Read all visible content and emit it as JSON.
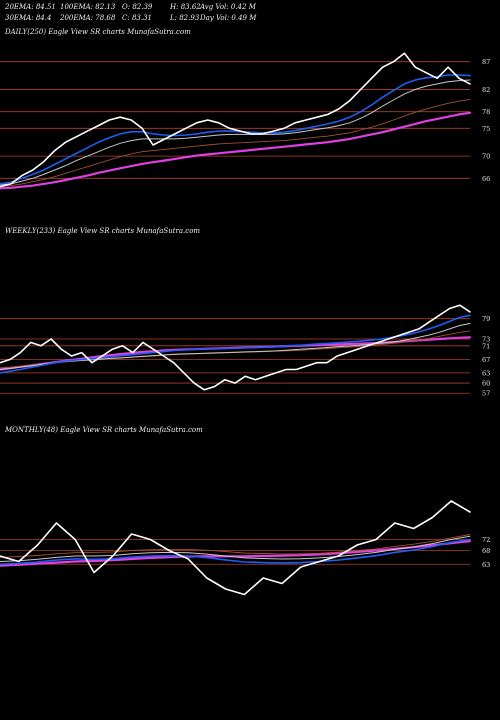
{
  "header": {
    "row1": [
      "20EMA: 84.51",
      "100EMA: 82.13",
      "O: 82.39",
      "H: 83.62",
      "Avg Vol: 0.42  M"
    ],
    "row2": [
      "30EMA: 84.4",
      "200EMA: 78.68",
      "C: 83.31",
      "L: 82.93",
      "Day Vol: 0.49 M"
    ]
  },
  "colors": {
    "background": "#000000",
    "price": "#ffffff",
    "ema_fast": "#1e5ef5",
    "ema_mid": "#c8c8c8",
    "ema_slow": "#a0522d",
    "ema_long": "#e040e0",
    "gridline": "#b0402a"
  },
  "chart_data": [
    {
      "type": "line",
      "title": "DAILY(250) Eagle  View  SR charts MunafaSutra.com",
      "yticks": [
        87,
        82,
        78,
        75,
        70,
        66
      ],
      "ylim": [
        63,
        90
      ],
      "grid": true,
      "series": [
        {
          "role": "price",
          "values": [
            64.5,
            65,
            66.5,
            67.5,
            69,
            71,
            72.5,
            73.5,
            74.5,
            75.5,
            76.5,
            77,
            76.5,
            75,
            72,
            73,
            74,
            75,
            76,
            76.5,
            76,
            75,
            74.5,
            74,
            74,
            74.5,
            75,
            76,
            76.5,
            77,
            77.5,
            78.5,
            80,
            82,
            84,
            86,
            87,
            88.5,
            86,
            85,
            84,
            86,
            84,
            83
          ]
        },
        {
          "role": "ema_fast",
          "values": [
            65,
            65.3,
            66,
            66.7,
            67.5,
            68.5,
            69.5,
            70.5,
            71.5,
            72.5,
            73.3,
            74,
            74.4,
            74.4,
            74,
            73.8,
            73.7,
            73.8,
            74,
            74.3,
            74.5,
            74.5,
            74.4,
            74.3,
            74.2,
            74.2,
            74.3,
            74.6,
            75,
            75.4,
            75.8,
            76.3,
            77,
            78,
            79.2,
            80.6,
            81.8,
            83,
            83.7,
            84.1,
            84.3,
            84.6,
            84.6,
            84.5
          ]
        },
        {
          "role": "ema_mid",
          "values": [
            64.8,
            65,
            65.5,
            66,
            66.7,
            67.5,
            68.3,
            69.2,
            70,
            70.8,
            71.6,
            72.3,
            72.8,
            73.1,
            73.1,
            73.1,
            73.1,
            73.2,
            73.4,
            73.6,
            73.8,
            73.9,
            73.9,
            73.9,
            73.9,
            73.9,
            74,
            74.2,
            74.5,
            74.8,
            75.1,
            75.5,
            76,
            76.8,
            77.8,
            79,
            80.1,
            81.2,
            82,
            82.6,
            83,
            83.4,
            83.6,
            83.7
          ]
        },
        {
          "role": "ema_slow",
          "values": [
            64.5,
            64.7,
            65,
            65.4,
            65.8,
            66.3,
            66.9,
            67.5,
            68.1,
            68.7,
            69.3,
            69.9,
            70.4,
            70.8,
            71,
            71.2,
            71.4,
            71.6,
            71.8,
            72,
            72.2,
            72.3,
            72.4,
            72.5,
            72.6,
            72.7,
            72.8,
            73,
            73.2,
            73.4,
            73.6,
            73.9,
            74.2,
            74.7,
            75.2,
            75.8,
            76.5,
            77.2,
            77.9,
            78.5,
            79,
            79.5,
            79.9,
            80.2
          ]
        },
        {
          "role": "ema_long",
          "values": [
            64.2,
            64.3,
            64.5,
            64.7,
            65,
            65.3,
            65.7,
            66.1,
            66.5,
            67,
            67.4,
            67.8,
            68.2,
            68.6,
            68.9,
            69.2,
            69.5,
            69.8,
            70.1,
            70.3,
            70.5,
            70.7,
            70.9,
            71.1,
            71.3,
            71.5,
            71.7,
            71.9,
            72.1,
            72.3,
            72.5,
            72.8,
            73.1,
            73.5,
            73.9,
            74.3,
            74.8,
            75.3,
            75.8,
            76.3,
            76.7,
            77.1,
            77.5,
            77.8
          ]
        }
      ]
    },
    {
      "type": "line",
      "title": "WEEKLY(233) Eagle  View  SR charts MunafaSutra.com",
      "yticks": [
        79,
        73,
        71,
        67,
        63,
        60,
        57
      ],
      "ylim": [
        55,
        86
      ],
      "grid": true,
      "series": [
        {
          "role": "price",
          "values": [
            66,
            67,
            69,
            72,
            71,
            73,
            70,
            68,
            69,
            66,
            68,
            70,
            71,
            69,
            72,
            70,
            68,
            66,
            63,
            60,
            58,
            59,
            61,
            60,
            62,
            61,
            62,
            63,
            64,
            64,
            65,
            66,
            66,
            68,
            69,
            70,
            71,
            72,
            73,
            74,
            75,
            76,
            78,
            80,
            82,
            83,
            81
          ]
        },
        {
          "role": "ema_fast",
          "values": [
            63,
            63.5,
            64,
            64.6,
            65.2,
            65.8,
            66.3,
            66.7,
            67,
            67.2,
            67.5,
            67.8,
            68.1,
            68.4,
            68.7,
            69,
            69.3,
            69.6,
            69.8,
            70,
            70.1,
            70.2,
            70.2,
            70.3,
            70.4,
            70.5,
            70.6,
            70.7,
            70.9,
            71.1,
            71.3,
            71.5,
            71.7,
            71.9,
            72.1,
            72.3,
            72.6,
            72.9,
            73.3,
            73.8,
            74.4,
            75.1,
            76,
            77,
            78.2,
            79.4,
            80
          ]
        },
        {
          "role": "ema_mid",
          "values": [
            64,
            64.3,
            64.7,
            65.1,
            65.5,
            65.9,
            66.2,
            66.5,
            66.7,
            66.9,
            67.1,
            67.3,
            67.5,
            67.7,
            67.9,
            68.1,
            68.3,
            68.5,
            68.6,
            68.7,
            68.8,
            68.9,
            69,
            69.1,
            69.2,
            69.3,
            69.4,
            69.5,
            69.7,
            69.9,
            70.1,
            70.3,
            70.5,
            70.7,
            70.9,
            71.1,
            71.4,
            71.7,
            72,
            72.4,
            72.9,
            73.5,
            74.2,
            75,
            76,
            77,
            77.6
          ]
        },
        {
          "role": "ema_slow",
          "values": [
            64.5,
            64.7,
            65,
            65.3,
            65.6,
            65.9,
            66.2,
            66.4,
            66.6,
            66.8,
            67,
            67.2,
            67.4,
            67.6,
            67.8,
            68,
            68.2,
            68.4,
            68.5,
            68.6,
            68.7,
            68.8,
            68.9,
            69,
            69.1,
            69.2,
            69.3,
            69.4,
            69.5,
            69.6,
            69.8,
            70,
            70.2,
            70.4,
            70.6,
            70.8,
            71,
            71.3,
            71.6,
            71.9,
            72.3,
            72.7,
            73.2,
            73.8,
            74.4,
            75,
            75.4
          ]
        },
        {
          "role": "ema_long",
          "values": [
            64,
            64.4,
            64.8,
            65.2,
            65.6,
            66,
            66.4,
            66.8,
            67.2,
            67.6,
            68,
            68.3,
            68.6,
            68.9,
            69.2,
            69.4,
            69.6,
            69.8,
            69.9,
            70,
            70.1,
            70.2,
            70.3,
            70.4,
            70.5,
            70.6,
            70.7,
            70.8,
            70.9,
            71,
            71.1,
            71.2,
            71.3,
            71.4,
            71.5,
            71.6,
            71.7,
            71.8,
            72,
            72.2,
            72.4,
            72.6,
            72.8,
            73,
            73.2,
            73.4,
            73.5
          ]
        }
      ]
    },
    {
      "type": "line",
      "title": "MONTHLY(48) Eagle  View  SR charts MunafaSutra.com",
      "yticks": [
        72,
        68,
        63
      ],
      "ylim": [
        50,
        90
      ],
      "grid": true,
      "series": [
        {
          "role": "price",
          "values": [
            66,
            64,
            70,
            78,
            72,
            60,
            66,
            74,
            72,
            68,
            65,
            58,
            54,
            52,
            58,
            56,
            62,
            64,
            66,
            70,
            72,
            78,
            76,
            80,
            86,
            82
          ]
        },
        {
          "role": "ema_fast",
          "values": [
            63,
            63.3,
            63.8,
            64.5,
            65,
            64.8,
            65,
            65.6,
            66,
            66.1,
            66,
            65.4,
            64.6,
            63.8,
            63.6,
            63.4,
            63.6,
            64,
            64.5,
            65.3,
            66.1,
            67.3,
            68.2,
            69.4,
            71,
            72
          ]
        },
        {
          "role": "ema_mid",
          "values": [
            64,
            64.3,
            64.8,
            65.5,
            66,
            66,
            66.2,
            66.8,
            67.2,
            67.3,
            67.2,
            66.7,
            66,
            65.3,
            65.1,
            64.9,
            65,
            65.3,
            65.8,
            66.5,
            67.3,
            68.4,
            69.3,
            70.5,
            72,
            73.2
          ]
        },
        {
          "role": "ema_slow",
          "values": [
            65.5,
            65.8,
            66.2,
            66.8,
            67.2,
            67.3,
            67.5,
            68,
            68.3,
            68.4,
            68.4,
            68.1,
            67.6,
            67.1,
            66.9,
            66.7,
            66.8,
            67,
            67.4,
            68,
            68.6,
            69.5,
            70.3,
            71.3,
            72.6,
            73.8
          ]
        },
        {
          "role": "ema_long",
          "values": [
            62.5,
            62.8,
            63.2,
            63.6,
            64,
            64.2,
            64.5,
            64.9,
            65.3,
            65.6,
            65.8,
            65.9,
            65.9,
            65.9,
            66,
            66.1,
            66.3,
            66.6,
            67,
            67.5,
            68,
            68.6,
            69.2,
            69.9,
            70.7,
            71.4
          ]
        }
      ]
    }
  ]
}
